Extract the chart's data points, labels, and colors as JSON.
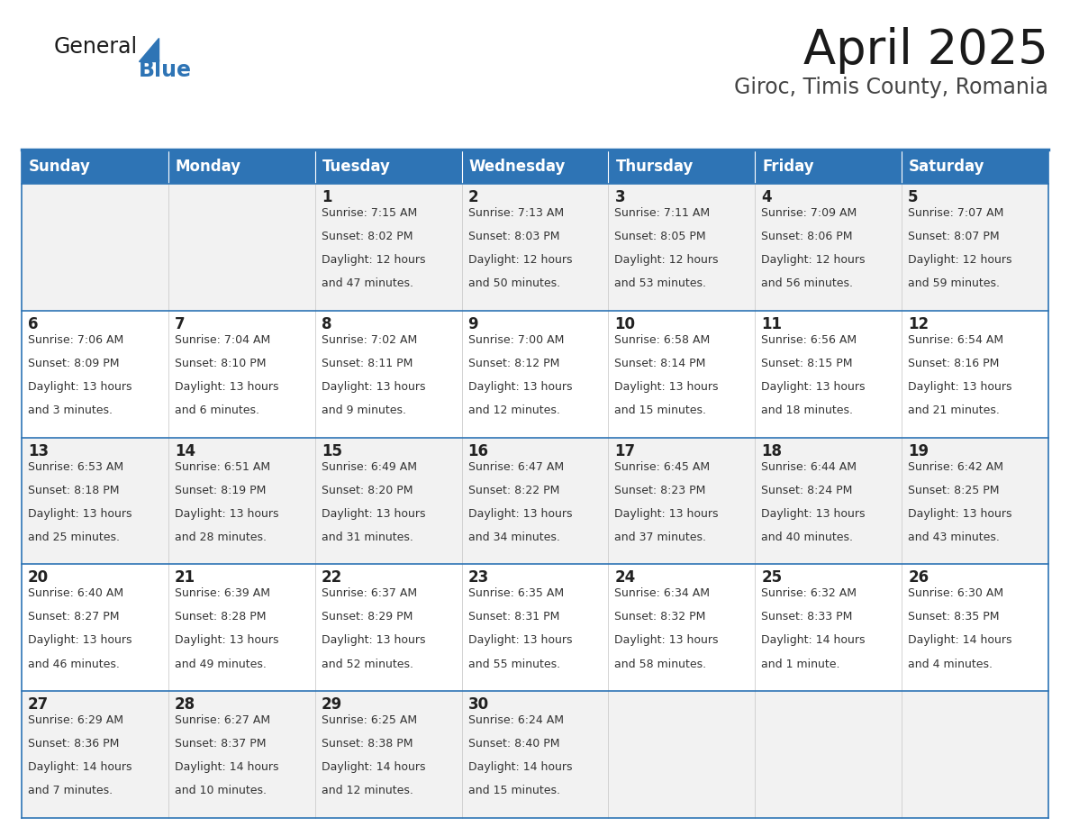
{
  "title": "April 2025",
  "subtitle": "Giroc, Timis County, Romania",
  "header_color": "#2e74b5",
  "header_text_color": "#ffffff",
  "cell_bg_color": [
    "#f2f2f2",
    "#ffffff"
  ],
  "border_color": "#2e74b5",
  "separator_color": "#cccccc",
  "day_names": [
    "Sunday",
    "Monday",
    "Tuesday",
    "Wednesday",
    "Thursday",
    "Friday",
    "Saturday"
  ],
  "weeks": [
    [
      {
        "day": "",
        "sunrise": "",
        "sunset": "",
        "daylight": ""
      },
      {
        "day": "",
        "sunrise": "",
        "sunset": "",
        "daylight": ""
      },
      {
        "day": "1",
        "sunrise": "Sunrise: 7:15 AM",
        "sunset": "Sunset: 8:02 PM",
        "daylight": "Daylight: 12 hours\nand 47 minutes."
      },
      {
        "day": "2",
        "sunrise": "Sunrise: 7:13 AM",
        "sunset": "Sunset: 8:03 PM",
        "daylight": "Daylight: 12 hours\nand 50 minutes."
      },
      {
        "day": "3",
        "sunrise": "Sunrise: 7:11 AM",
        "sunset": "Sunset: 8:05 PM",
        "daylight": "Daylight: 12 hours\nand 53 minutes."
      },
      {
        "day": "4",
        "sunrise": "Sunrise: 7:09 AM",
        "sunset": "Sunset: 8:06 PM",
        "daylight": "Daylight: 12 hours\nand 56 minutes."
      },
      {
        "day": "5",
        "sunrise": "Sunrise: 7:07 AM",
        "sunset": "Sunset: 8:07 PM",
        "daylight": "Daylight: 12 hours\nand 59 minutes."
      }
    ],
    [
      {
        "day": "6",
        "sunrise": "Sunrise: 7:06 AM",
        "sunset": "Sunset: 8:09 PM",
        "daylight": "Daylight: 13 hours\nand 3 minutes."
      },
      {
        "day": "7",
        "sunrise": "Sunrise: 7:04 AM",
        "sunset": "Sunset: 8:10 PM",
        "daylight": "Daylight: 13 hours\nand 6 minutes."
      },
      {
        "day": "8",
        "sunrise": "Sunrise: 7:02 AM",
        "sunset": "Sunset: 8:11 PM",
        "daylight": "Daylight: 13 hours\nand 9 minutes."
      },
      {
        "day": "9",
        "sunrise": "Sunrise: 7:00 AM",
        "sunset": "Sunset: 8:12 PM",
        "daylight": "Daylight: 13 hours\nand 12 minutes."
      },
      {
        "day": "10",
        "sunrise": "Sunrise: 6:58 AM",
        "sunset": "Sunset: 8:14 PM",
        "daylight": "Daylight: 13 hours\nand 15 minutes."
      },
      {
        "day": "11",
        "sunrise": "Sunrise: 6:56 AM",
        "sunset": "Sunset: 8:15 PM",
        "daylight": "Daylight: 13 hours\nand 18 minutes."
      },
      {
        "day": "12",
        "sunrise": "Sunrise: 6:54 AM",
        "sunset": "Sunset: 8:16 PM",
        "daylight": "Daylight: 13 hours\nand 21 minutes."
      }
    ],
    [
      {
        "day": "13",
        "sunrise": "Sunrise: 6:53 AM",
        "sunset": "Sunset: 8:18 PM",
        "daylight": "Daylight: 13 hours\nand 25 minutes."
      },
      {
        "day": "14",
        "sunrise": "Sunrise: 6:51 AM",
        "sunset": "Sunset: 8:19 PM",
        "daylight": "Daylight: 13 hours\nand 28 minutes."
      },
      {
        "day": "15",
        "sunrise": "Sunrise: 6:49 AM",
        "sunset": "Sunset: 8:20 PM",
        "daylight": "Daylight: 13 hours\nand 31 minutes."
      },
      {
        "day": "16",
        "sunrise": "Sunrise: 6:47 AM",
        "sunset": "Sunset: 8:22 PM",
        "daylight": "Daylight: 13 hours\nand 34 minutes."
      },
      {
        "day": "17",
        "sunrise": "Sunrise: 6:45 AM",
        "sunset": "Sunset: 8:23 PM",
        "daylight": "Daylight: 13 hours\nand 37 minutes."
      },
      {
        "day": "18",
        "sunrise": "Sunrise: 6:44 AM",
        "sunset": "Sunset: 8:24 PM",
        "daylight": "Daylight: 13 hours\nand 40 minutes."
      },
      {
        "day": "19",
        "sunrise": "Sunrise: 6:42 AM",
        "sunset": "Sunset: 8:25 PM",
        "daylight": "Daylight: 13 hours\nand 43 minutes."
      }
    ],
    [
      {
        "day": "20",
        "sunrise": "Sunrise: 6:40 AM",
        "sunset": "Sunset: 8:27 PM",
        "daylight": "Daylight: 13 hours\nand 46 minutes."
      },
      {
        "day": "21",
        "sunrise": "Sunrise: 6:39 AM",
        "sunset": "Sunset: 8:28 PM",
        "daylight": "Daylight: 13 hours\nand 49 minutes."
      },
      {
        "day": "22",
        "sunrise": "Sunrise: 6:37 AM",
        "sunset": "Sunset: 8:29 PM",
        "daylight": "Daylight: 13 hours\nand 52 minutes."
      },
      {
        "day": "23",
        "sunrise": "Sunrise: 6:35 AM",
        "sunset": "Sunset: 8:31 PM",
        "daylight": "Daylight: 13 hours\nand 55 minutes."
      },
      {
        "day": "24",
        "sunrise": "Sunrise: 6:34 AM",
        "sunset": "Sunset: 8:32 PM",
        "daylight": "Daylight: 13 hours\nand 58 minutes."
      },
      {
        "day": "25",
        "sunrise": "Sunrise: 6:32 AM",
        "sunset": "Sunset: 8:33 PM",
        "daylight": "Daylight: 14 hours\nand 1 minute."
      },
      {
        "day": "26",
        "sunrise": "Sunrise: 6:30 AM",
        "sunset": "Sunset: 8:35 PM",
        "daylight": "Daylight: 14 hours\nand 4 minutes."
      }
    ],
    [
      {
        "day": "27",
        "sunrise": "Sunrise: 6:29 AM",
        "sunset": "Sunset: 8:36 PM",
        "daylight": "Daylight: 14 hours\nand 7 minutes."
      },
      {
        "day": "28",
        "sunrise": "Sunrise: 6:27 AM",
        "sunset": "Sunset: 8:37 PM",
        "daylight": "Daylight: 14 hours\nand 10 minutes."
      },
      {
        "day": "29",
        "sunrise": "Sunrise: 6:25 AM",
        "sunset": "Sunset: 8:38 PM",
        "daylight": "Daylight: 14 hours\nand 12 minutes."
      },
      {
        "day": "30",
        "sunrise": "Sunrise: 6:24 AM",
        "sunset": "Sunset: 8:40 PM",
        "daylight": "Daylight: 14 hours\nand 15 minutes."
      },
      {
        "day": "",
        "sunrise": "",
        "sunset": "",
        "daylight": ""
      },
      {
        "day": "",
        "sunrise": "",
        "sunset": "",
        "daylight": ""
      },
      {
        "day": "",
        "sunrise": "",
        "sunset": "",
        "daylight": ""
      }
    ]
  ],
  "title_fontsize": 38,
  "subtitle_fontsize": 17,
  "header_fontsize": 12,
  "day_num_fontsize": 12,
  "cell_text_fontsize": 9,
  "fig_width": 11.88,
  "fig_height": 9.18,
  "dpi": 100
}
